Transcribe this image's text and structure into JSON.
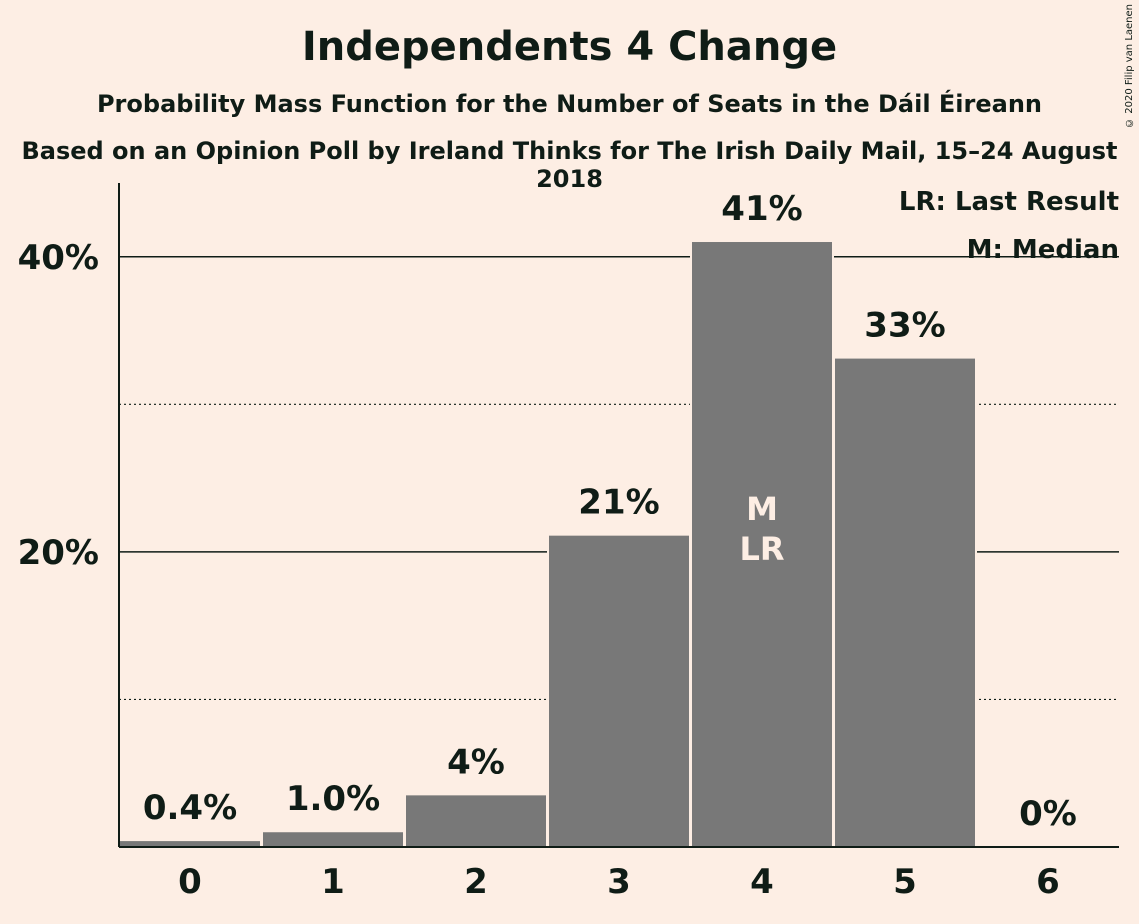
{
  "chart_data": {
    "type": "bar",
    "title": "Independents 4 Change",
    "subtitle": "Probability Mass Function for the Number of Seats in the Dáil Éireann",
    "subtitle2": "Based on an Opinion Poll by Ireland Thinks for The Irish Daily Mail, 15–24 August 2018",
    "categories": [
      "0",
      "1",
      "2",
      "3",
      "4",
      "5",
      "6"
    ],
    "values": [
      0.4,
      1.0,
      3.5,
      21.1,
      41.0,
      33.1,
      0.0
    ],
    "value_labels": [
      "0.4%",
      "1.0%",
      "4%",
      "21%",
      "41%",
      "33%",
      "0%"
    ],
    "ylim": [
      0,
      45
    ],
    "yticks": [
      20,
      40
    ],
    "ytick_labels": [
      "20%",
      "40%"
    ],
    "minor_gridlines": [
      10,
      30
    ],
    "bar_color": "#787878",
    "median_index": 4,
    "last_result_index": 4,
    "median_marker": "M",
    "last_result_marker": "LR",
    "legend": [
      "LR: Last Result",
      "M: Median"
    ],
    "legend_position": "top-right"
  },
  "copyright": "© 2020 Filip van Laenen"
}
